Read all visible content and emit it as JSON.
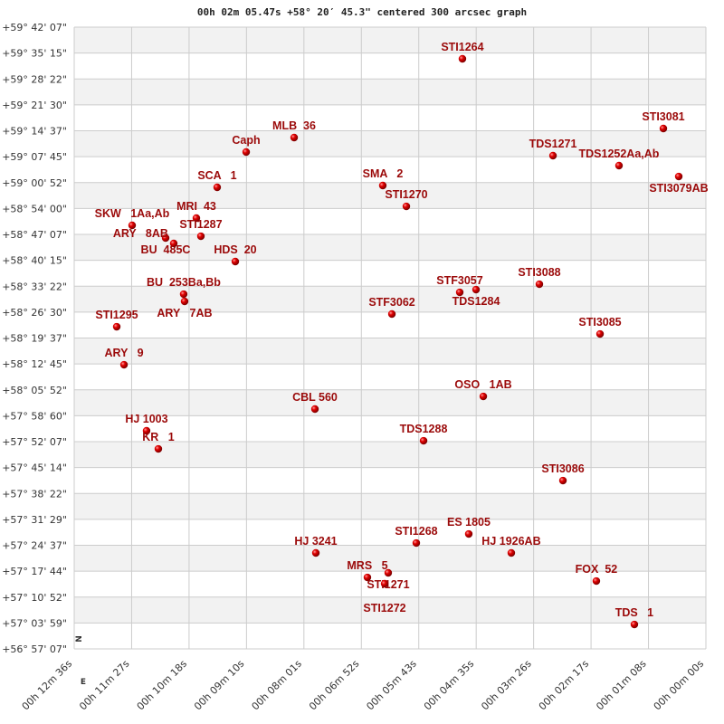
{
  "chart_data": {
    "type": "scatter",
    "title": "00h 02m 05.47s +58° 20′ 45.3\" centered 300 arcsec graph",
    "xlabel": "",
    "ylabel": "",
    "x_unit": "RA seconds of time",
    "y_unit": "Dec degrees",
    "xlim": [
      756,
      0
    ],
    "ylim": [
      56.95194,
      59.70194
    ],
    "grid": true,
    "colors": {
      "marker": "#dd0000",
      "label": "#9b0a0a",
      "band": "#f2f2f2",
      "grid": "#cccccc"
    },
    "x_ticks": [
      "00h 12m 36s",
      "00h 11m 27s",
      "00h 10m 18s",
      "00h 09m 10s",
      "00h 08m 01s",
      "00h 06m 52s",
      "00h 05m 43s",
      "00h 04m 35s",
      "00h 03m 26s",
      "00h 02m 17s",
      "00h 01m 08s",
      "00h 00m 00s"
    ],
    "y_ticks": [
      "+59° 42' 07\"",
      "+59° 35' 15\"",
      "+59° 28' 22\"",
      "+59° 21' 30\"",
      "+59° 14' 37\"",
      "+59° 07' 45\"",
      "+59° 00' 52\"",
      "+58° 54' 00\"",
      "+58° 47' 07\"",
      "+58° 40' 15\"",
      "+58° 33' 22\"",
      "+58° 26' 30\"",
      "+58° 19' 37\"",
      "+58° 12' 45\"",
      "+58° 05' 52\"",
      "+57° 58' 60\"",
      "+57° 52' 07\"",
      "+57° 45' 14\"",
      "+57° 38' 22\"",
      "+57° 31' 29\"",
      "+57° 24' 37\"",
      "+57° 17' 44\"",
      "+57° 10' 52\"",
      "+57° 03' 59\"",
      "+56° 57' 07\""
    ],
    "compass": {
      "north": "N",
      "east": "E"
    },
    "points": [
      {
        "label": "STI1264",
        "ra": 291.4,
        "dec": 59.5618
      },
      {
        "label": "MLB  36",
        "ra": 492.8,
        "dec": 59.2136
      },
      {
        "label": "Caph",
        "ra": 550.2,
        "dec": 59.1495
      },
      {
        "label": "SCA   1",
        "ra": 584.9,
        "dec": 58.9934
      },
      {
        "label": "SMA   2",
        "ra": 386.7,
        "dec": 59.0014
      },
      {
        "label": "STI1270",
        "ra": 358.5,
        "dec": 58.9093
      },
      {
        "label": "STI3081",
        "ra": 50.9,
        "dec": 59.2536
      },
      {
        "label": "TDS1271",
        "ra": 183.0,
        "dec": 59.1335
      },
      {
        "label": "TDS1252Aa,Ab",
        "ra": 104.0,
        "dec": 59.0895
      },
      {
        "label": "STI3079AB",
        "ra": 32.5,
        "dec": 59.0414
      },
      {
        "label": "SKW   1Aa,Ab",
        "ra": 686.7,
        "dec": 58.8253
      },
      {
        "label": "MRI  43",
        "ra": 609.8,
        "dec": 58.8573
      },
      {
        "label": "STI1287",
        "ra": 604.4,
        "dec": 58.7772
      },
      {
        "label": "BU  485C",
        "ra": 646.6,
        "dec": 58.7692
      },
      {
        "label": "ARY   8AB",
        "ra": 636.9,
        "dec": 58.7452
      },
      {
        "label": "HDS  20",
        "ra": 563.2,
        "dec": 58.6652
      },
      {
        "label": "BU  253Ba,Bb",
        "ra": 625.0,
        "dec": 58.521
      },
      {
        "label": "ARY   7AB",
        "ra": 623.9,
        "dec": 58.489
      },
      {
        "label": "STF3062",
        "ra": 375.8,
        "dec": 58.433
      },
      {
        "label": "STF3057",
        "ra": 294.6,
        "dec": 58.529
      },
      {
        "label": "TDS1284",
        "ra": 275.1,
        "dec": 58.541
      },
      {
        "label": "STI3088",
        "ra": 199.3,
        "dec": 58.565
      },
      {
        "label": "STI1295",
        "ra": 705.1,
        "dec": 58.3769
      },
      {
        "label": "STI3085",
        "ra": 126.7,
        "dec": 58.3449
      },
      {
        "label": "ARY   9",
        "ra": 696.4,
        "dec": 58.2088
      },
      {
        "label": "OSO   1AB",
        "ra": 266.4,
        "dec": 58.0687
      },
      {
        "label": "CBL 560",
        "ra": 467.9,
        "dec": 58.0127
      },
      {
        "label": "HJ 1003",
        "ra": 669.4,
        "dec": 57.9166
      },
      {
        "label": "TDS1288",
        "ra": 337.9,
        "dec": 57.8725
      },
      {
        "label": "KR   1",
        "ra": 655.3,
        "dec": 57.8365
      },
      {
        "label": "STI3086",
        "ra": 171.1,
        "dec": 57.6964
      },
      {
        "label": "ES 1805",
        "ra": 283.8,
        "dec": 57.4602
      },
      {
        "label": "STI1268",
        "ra": 346.6,
        "dec": 57.4202
      },
      {
        "label": "HJ 3241",
        "ra": 466.8,
        "dec": 57.3762
      },
      {
        "label": "HJ 1926AB",
        "ra": 232.9,
        "dec": 57.3762
      },
      {
        "label": "MRS   5",
        "ra": 405.1,
        "dec": 57.2681
      },
      {
        "label": "STI1271",
        "ra": 380.2,
        "dec": 57.2882
      },
      {
        "label": "STI1272",
        "ra": 384.5,
        "dec": 57.2401
      },
      {
        "label": "FOX  52",
        "ra": 131.1,
        "dec": 57.2521
      },
      {
        "label": "TDS   1",
        "ra": 85.6,
        "dec": 57.0599
      }
    ]
  }
}
